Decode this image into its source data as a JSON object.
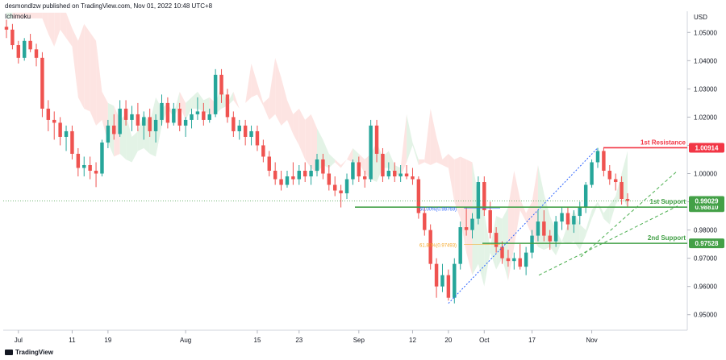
{
  "header": {
    "publisher": "desmondlzw published on TradingView.com, Nov 01, 2022 10:48 UTC+8",
    "indicator": "Ichimoku",
    "currency": "USD",
    "brand": "TradingView"
  },
  "colors": {
    "up": "#26a69a",
    "down": "#ef5350",
    "resistance": "#f23645",
    "support": "#43a047",
    "fib_blue": "#2962ff",
    "fib_orange": "#f5a623",
    "channel": "#4caf50",
    "cloud_red": "#fde1df",
    "cloud_green": "#e0f2e3"
  },
  "chart_data": {
    "type": "candlestick",
    "ylim": [
      0.9445,
      1.0575
    ],
    "y_ticks": [
      "1.05000",
      "1.04000",
      "1.03000",
      "1.02000",
      "1.01000",
      "1.00000",
      "0.99000",
      "0.98000",
      "0.97000",
      "0.96000",
      "0.95000"
    ],
    "x_ticks": [
      "Jul",
      "11",
      "19",
      "Aug",
      "15",
      "23",
      "Sep",
      "12",
      "20",
      "Oct",
      "17",
      "Nov"
    ],
    "levels": [
      {
        "name": "1st Resistance",
        "value": "1.00914",
        "kind": "resistance"
      },
      {
        "name": "1st Support",
        "value": "0.98810",
        "kind": "support"
      },
      {
        "name": "2nd Support",
        "value": "0.97528",
        "kind": "support"
      }
    ],
    "current_price": "0.99029",
    "fib_labels": [
      {
        "text": "50.00%(0.98769)",
        "value": 0.98769
      },
      {
        "text": "61.80%(0.97493)",
        "value": 0.97493
      }
    ],
    "candles": [
      [
        1.052,
        1.0545,
        1.048,
        1.051
      ],
      [
        1.051,
        1.053,
        1.044,
        1.0455
      ],
      [
        1.0455,
        1.047,
        1.039,
        1.041
      ],
      [
        1.041,
        1.048,
        1.04,
        1.047
      ],
      [
        1.047,
        1.0495,
        1.043,
        1.044
      ],
      [
        1.044,
        1.046,
        1.038,
        1.041
      ],
      [
        1.041,
        1.043,
        1.02,
        1.023
      ],
      [
        1.023,
        1.026,
        1.015,
        1.019
      ],
      [
        1.019,
        1.022,
        1.012,
        1.018
      ],
      [
        1.018,
        1.02,
        1.01,
        1.013
      ],
      [
        1.013,
        1.017,
        1.008,
        1.015
      ],
      [
        1.015,
        1.017,
        1.005,
        1.007
      ],
      [
        1.007,
        1.009,
        0.999,
        1.002
      ],
      [
        1.002,
        1.006,
        0.999,
        1.003
      ],
      [
        1.003,
        1.006,
        0.998,
        1.001
      ],
      [
        1.001,
        1.004,
        0.9952,
        1.0
      ],
      [
        1.0,
        1.012,
        0.999,
        1.011
      ],
      [
        1.011,
        1.019,
        1.009,
        1.017
      ],
      [
        1.017,
        1.021,
        1.012,
        1.014
      ],
      [
        1.014,
        1.026,
        1.013,
        1.023
      ],
      [
        1.023,
        1.026,
        1.017,
        1.019
      ],
      [
        1.019,
        1.024,
        1.015,
        1.021
      ],
      [
        1.021,
        1.025,
        1.015,
        1.017
      ],
      [
        1.017,
        1.022,
        1.012,
        1.02
      ],
      [
        1.02,
        1.023,
        1.013,
        1.015
      ],
      [
        1.015,
        1.021,
        1.011,
        1.019
      ],
      [
        1.019,
        1.028,
        1.017,
        1.025
      ],
      [
        1.025,
        1.027,
        1.016,
        1.018
      ],
      [
        1.018,
        1.025,
        1.017,
        1.023
      ],
      [
        1.023,
        1.025,
        1.015,
        1.017
      ],
      [
        1.017,
        1.02,
        1.013,
        1.019
      ],
      [
        1.019,
        1.023,
        1.016,
        1.021
      ],
      [
        1.021,
        1.027,
        1.019,
        1.022
      ],
      [
        1.022,
        1.025,
        1.017,
        1.019
      ],
      [
        1.019,
        1.023,
        1.018,
        1.021
      ],
      [
        1.021,
        1.037,
        1.02,
        1.035
      ],
      [
        1.035,
        1.037,
        1.025,
        1.028
      ],
      [
        1.028,
        1.03,
        1.018,
        1.02
      ],
      [
        1.02,
        1.022,
        1.013,
        1.015
      ],
      [
        1.015,
        1.019,
        1.012,
        1.017
      ],
      [
        1.017,
        1.019,
        1.01,
        1.013
      ],
      [
        1.013,
        1.017,
        1.01,
        1.015
      ],
      [
        1.015,
        1.017,
        1.008,
        1.01
      ],
      [
        1.01,
        1.012,
        1.004,
        1.006
      ],
      [
        1.006,
        1.008,
        0.999,
        1.001
      ],
      [
        1.001,
        1.004,
        0.996,
        0.998
      ],
      [
        0.998,
        1.001,
        0.994,
        0.996
      ],
      [
        0.996,
        1.001,
        0.995,
        0.999
      ],
      [
        0.999,
        1.004,
        0.996,
        0.998
      ],
      [
        0.998,
        1.003,
        0.996,
        1.001
      ],
      [
        1.001,
        1.004,
        0.997,
        0.999
      ],
      [
        0.999,
        1.003,
        0.996,
        1.001
      ],
      [
        1.001,
        1.007,
        0.999,
        1.005
      ],
      [
        1.005,
        1.007,
        0.998,
        1.0
      ],
      [
        1.0,
        1.003,
        0.994,
        0.996
      ],
      [
        0.996,
        0.999,
        0.992,
        0.994
      ],
      [
        0.994,
        0.996,
        0.988,
        0.993
      ],
      [
        0.993,
        1.0,
        0.991,
        0.998
      ],
      [
        0.998,
        1.005,
        0.996,
        1.004
      ],
      [
        1.004,
        1.006,
        0.997,
        0.999
      ],
      [
        0.999,
        1.001,
        0.995,
        0.998
      ],
      [
        0.998,
        1.019,
        0.997,
        1.017
      ],
      [
        1.017,
        1.019,
        1.004,
        1.007
      ],
      [
        1.007,
        1.009,
        0.997,
        0.999
      ],
      [
        0.999,
        1.004,
        0.998,
        1.001
      ],
      [
        1.001,
        1.004,
        0.997,
        0.999
      ],
      [
        0.999,
        1.003,
        0.997,
        1.0
      ],
      [
        1.0,
        1.003,
        0.998,
        0.999
      ],
      [
        0.999,
        1.002,
        0.996,
        0.998
      ],
      [
        0.998,
        0.999,
        0.984,
        0.986
      ],
      [
        0.986,
        0.988,
        0.978,
        0.98
      ],
      [
        0.98,
        0.982,
        0.966,
        0.968
      ],
      [
        0.968,
        0.97,
        0.956,
        0.96
      ],
      [
        0.96,
        0.968,
        0.958,
        0.964
      ],
      [
        0.964,
        0.966,
        0.955,
        0.956
      ],
      [
        0.956,
        0.97,
        0.954,
        0.968
      ],
      [
        0.968,
        0.983,
        0.966,
        0.981
      ],
      [
        0.981,
        0.988,
        0.978,
        0.98
      ],
      [
        0.98,
        0.986,
        0.977,
        0.984
      ],
      [
        0.984,
        0.999,
        0.982,
        0.997
      ],
      [
        0.997,
        0.999,
        0.985,
        0.987
      ],
      [
        0.987,
        0.99,
        0.977,
        0.979
      ],
      [
        0.979,
        0.981,
        0.972,
        0.974
      ],
      [
        0.974,
        0.976,
        0.968,
        0.97
      ],
      [
        0.97,
        0.973,
        0.967,
        0.969
      ],
      [
        0.969,
        0.972,
        0.966,
        0.97
      ],
      [
        0.97,
        0.975,
        0.966,
        0.967
      ],
      [
        0.967,
        0.974,
        0.964,
        0.972
      ],
      [
        0.972,
        0.98,
        0.97,
        0.978
      ],
      [
        0.978,
        0.987,
        0.976,
        0.983
      ],
      [
        0.983,
        0.987,
        0.976,
        0.978
      ],
      [
        0.978,
        0.98,
        0.973,
        0.976
      ],
      [
        0.976,
        0.985,
        0.974,
        0.983
      ],
      [
        0.983,
        0.988,
        0.98,
        0.986
      ],
      [
        0.986,
        0.988,
        0.98,
        0.982
      ],
      [
        0.982,
        0.987,
        0.979,
        0.985
      ],
      [
        0.985,
        0.99,
        0.982,
        0.988
      ],
      [
        0.988,
        0.997,
        0.986,
        0.996
      ],
      [
        0.996,
        1.005,
        0.995,
        1.004
      ],
      [
        1.004,
        1.0091,
        1.002,
        1.008
      ],
      [
        1.008,
        1.009,
        0.999,
        1.001
      ],
      [
        1.001,
        1.003,
        0.996,
        0.998
      ],
      [
        0.998,
        1.0,
        0.994,
        0.997
      ],
      [
        0.997,
        0.999,
        0.989,
        0.991
      ],
      [
        0.991,
        0.993,
        0.988,
        0.9903
      ]
    ]
  }
}
